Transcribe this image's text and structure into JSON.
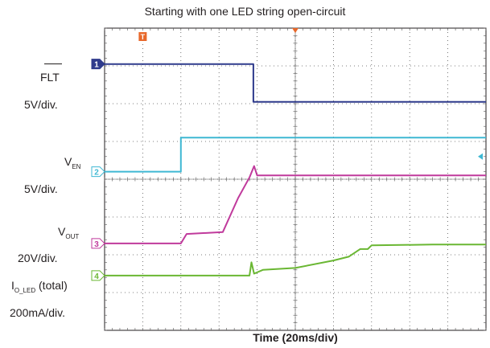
{
  "chart_data": {
    "type": "line",
    "title": "Starting with one LED string open-circuit",
    "xlabel": "Time (20ms/div)",
    "x_divisions": 10,
    "y_divisions": 8,
    "trigger_marker": "T",
    "channels": [
      {
        "number": "1",
        "name": "FLT",
        "name_overbar": true,
        "scale": "5V/div.",
        "color": "#2e3a8c",
        "points": [
          [
            0,
            7.05
          ],
          [
            3.9,
            7.05
          ],
          [
            3.9,
            6.05
          ],
          [
            10,
            6.05
          ]
        ]
      },
      {
        "number": "2",
        "name": "V",
        "name_sub": "EN",
        "scale": "5V/div.",
        "color": "#3fb8d3",
        "points": [
          [
            0,
            4.2
          ],
          [
            2.0,
            4.2
          ],
          [
            2.0,
            5.1
          ],
          [
            10,
            5.1
          ]
        ]
      },
      {
        "number": "3",
        "name": "V",
        "name_sub": "OUT",
        "scale": "20V/div.",
        "color": "#c03a9c",
        "points": [
          [
            0,
            2.3
          ],
          [
            2.0,
            2.3
          ],
          [
            2.15,
            2.55
          ],
          [
            3.1,
            2.6
          ],
          [
            3.5,
            3.5
          ],
          [
            3.8,
            4.05
          ],
          [
            3.92,
            4.35
          ],
          [
            4.0,
            4.1
          ],
          [
            10,
            4.1
          ]
        ]
      },
      {
        "number": "4",
        "name": "I",
        "name_sub": "O_LED",
        "name_suffix": " (total)",
        "scale": "200mA/div.",
        "color": "#6ab733",
        "points": [
          [
            0,
            1.45
          ],
          [
            3.8,
            1.45
          ],
          [
            3.85,
            1.8
          ],
          [
            3.92,
            1.5
          ],
          [
            4.15,
            1.6
          ],
          [
            5.0,
            1.65
          ],
          [
            6.0,
            1.85
          ],
          [
            6.4,
            1.95
          ],
          [
            6.7,
            2.15
          ],
          [
            6.9,
            2.15
          ],
          [
            7.0,
            2.25
          ],
          [
            8.6,
            2.27
          ],
          [
            10,
            2.27
          ]
        ]
      }
    ]
  }
}
